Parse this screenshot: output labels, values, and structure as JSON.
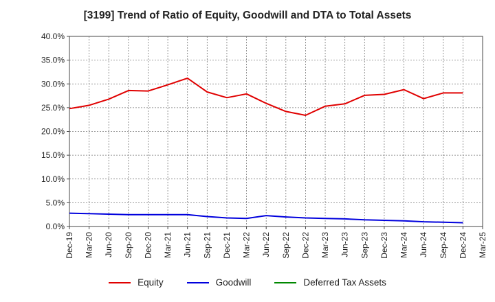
{
  "colors": {
    "equity": "#e00000",
    "goodwill": "#0000dd",
    "dta": "#008800"
  },
  "chart_data": {
    "type": "line",
    "title": "[3199]  Trend of Ratio of Equity, Goodwill and DTA to Total Assets",
    "xlabel": "",
    "ylabel": "",
    "ylim": [
      0,
      40
    ],
    "grid": true,
    "legend_position": "bottom",
    "y_ticks": [
      "0.0%",
      "5.0%",
      "10.0%",
      "15.0%",
      "20.0%",
      "25.0%",
      "30.0%",
      "35.0%",
      "40.0%"
    ],
    "categories": [
      "Dec-19",
      "Mar-20",
      "Jun-20",
      "Sep-20",
      "Dec-20",
      "Mar-21",
      "Jun-21",
      "Sep-21",
      "Dec-21",
      "Mar-22",
      "Jun-22",
      "Sep-22",
      "Dec-22",
      "Mar-23",
      "Jun-23",
      "Sep-23",
      "Dec-23",
      "Mar-24",
      "Jun-24",
      "Sep-24",
      "Dec-24",
      "Mar-25"
    ],
    "series": [
      {
        "name": "Equity",
        "values": [
          24.8,
          25.5,
          26.8,
          28.6,
          28.5,
          29.8,
          31.2,
          28.3,
          27.1,
          27.9,
          25.9,
          24.2,
          23.4,
          25.3,
          25.8,
          27.6,
          27.8,
          28.8,
          26.9,
          28.1,
          28.1,
          null
        ]
      },
      {
        "name": "Goodwill",
        "values": [
          2.8,
          2.7,
          2.6,
          2.5,
          2.5,
          2.5,
          2.5,
          2.1,
          1.8,
          1.7,
          2.3,
          2.0,
          1.8,
          1.7,
          1.6,
          1.4,
          1.3,
          1.2,
          1.0,
          0.9,
          0.8,
          null
        ]
      },
      {
        "name": "Deferred Tax Assets",
        "values": [
          null,
          null,
          null,
          null,
          null,
          null,
          null,
          null,
          null,
          null,
          null,
          null,
          null,
          null,
          null,
          null,
          null,
          null,
          null,
          null,
          null,
          null
        ]
      }
    ]
  },
  "legend": {
    "equity_label": "Equity",
    "goodwill_label": "Goodwill",
    "dta_label": "Deferred Tax Assets"
  }
}
